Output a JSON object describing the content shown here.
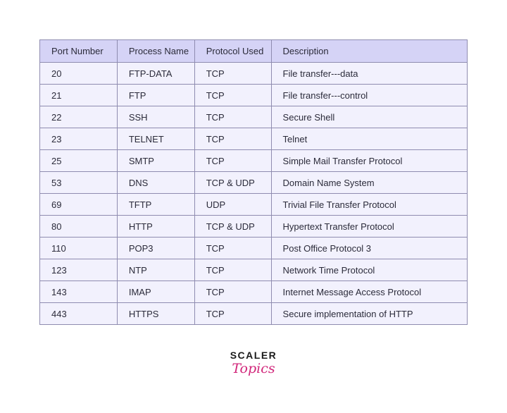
{
  "table": {
    "header": [
      "Port Number",
      "Process Name",
      "Protocol Used",
      "Description"
    ],
    "rows": [
      [
        "20",
        "FTP-DATA",
        "TCP",
        "File transfer---data"
      ],
      [
        "21",
        "FTP",
        "TCP",
        "File transfer---control"
      ],
      [
        "22",
        "SSH",
        "TCP",
        "Secure Shell"
      ],
      [
        "23",
        "TELNET",
        "TCP",
        "Telnet"
      ],
      [
        "25",
        "SMTP",
        "TCP",
        "Simple Mail Transfer Protocol"
      ],
      [
        "53",
        "DNS",
        "TCP & UDP",
        "Domain Name System"
      ],
      [
        "69",
        "TFTP",
        "UDP",
        "Trivial File Transfer Protocol"
      ],
      [
        "80",
        "HTTP",
        "TCP & UDP",
        "Hypertext Transfer Protocol"
      ],
      [
        "110",
        "POP3",
        "TCP",
        "Post Office Protocol 3"
      ],
      [
        "123",
        "NTP",
        "TCP",
        "Network Time Protocol"
      ],
      [
        "143",
        "IMAP",
        "TCP",
        "Internet Message Access Protocol"
      ],
      [
        "443",
        "HTTPS",
        "TCP",
        "Secure implementation of HTTP"
      ]
    ]
  },
  "logo": {
    "brand": "SCALER",
    "product": "Topics"
  }
}
